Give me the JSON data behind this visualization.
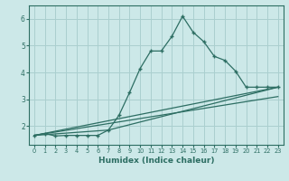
{
  "bg_color": "#cce8e8",
  "grid_color": "#aacfcf",
  "line_color": "#2d6e63",
  "xlabel": "Humidex (Indice chaleur)",
  "xlim": [
    -0.5,
    23.5
  ],
  "ylim": [
    1.3,
    6.5
  ],
  "yticks": [
    2,
    3,
    4,
    5,
    6
  ],
  "xticks": [
    0,
    1,
    2,
    3,
    4,
    5,
    6,
    7,
    8,
    9,
    10,
    11,
    12,
    13,
    14,
    15,
    16,
    17,
    18,
    19,
    20,
    21,
    22,
    23
  ],
  "main_x": [
    0,
    1,
    2,
    3,
    4,
    5,
    6,
    7,
    8,
    9,
    10,
    11,
    12,
    13,
    14,
    15,
    16,
    17,
    18,
    19,
    20,
    21,
    22,
    23
  ],
  "main_y": [
    1.65,
    1.72,
    1.63,
    1.65,
    1.65,
    1.65,
    1.65,
    1.85,
    2.4,
    3.25,
    4.15,
    4.8,
    4.8,
    5.35,
    6.1,
    5.5,
    5.15,
    4.6,
    4.45,
    4.05,
    3.45,
    3.45,
    3.45,
    3.45
  ],
  "line1_x": [
    0,
    23
  ],
  "line1_y": [
    1.65,
    3.45
  ],
  "line2_x": [
    0,
    7,
    23
  ],
  "line2_y": [
    1.65,
    1.85,
    3.45
  ],
  "line3_x": [
    0,
    23
  ],
  "line3_y": [
    1.65,
    3.1
  ]
}
